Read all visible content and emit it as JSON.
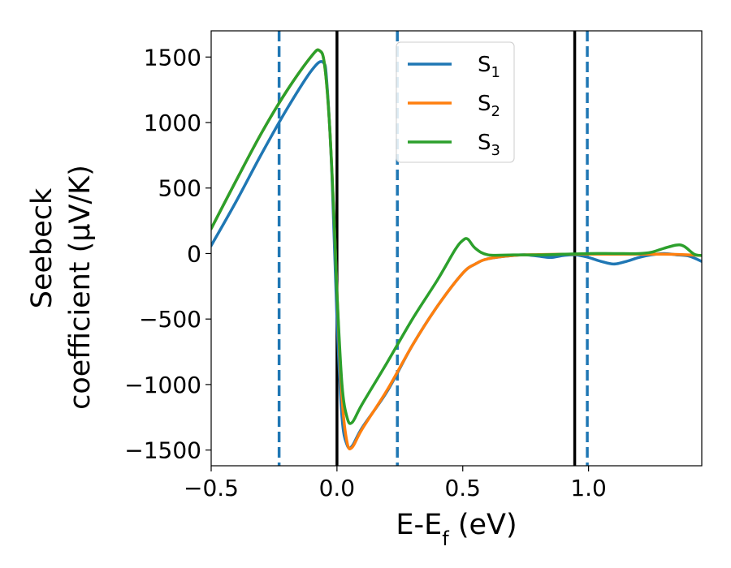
{
  "chart_data": {
    "type": "line",
    "xlabel": "E-E",
    "xlabel_sub": "f",
    "xlabel_unit": " (eV)",
    "ylabel_line1": "Seebeck",
    "ylabel_line2": "coefficient  (μV/K)",
    "xlim": [
      -0.5,
      1.45
    ],
    "ylim": [
      -1620,
      1700
    ],
    "xticks": [
      -0.5,
      0.0,
      0.5,
      1.0
    ],
    "xtick_labels": [
      "−0.5",
      "0.0",
      "0.5",
      "1.0"
    ],
    "yticks": [
      -1500,
      -1000,
      -500,
      0,
      500,
      1000,
      1500
    ],
    "ytick_labels": [
      "−1500",
      "−1000",
      "−500",
      "0",
      "500",
      "1000",
      "1500"
    ],
    "grid": false,
    "legend": {
      "placement": "top-center"
    },
    "vlines": [
      {
        "x": -0.23,
        "style": "dashed",
        "color": "#1f77b4"
      },
      {
        "x": 0.0,
        "style": "solid",
        "color": "#000000"
      },
      {
        "x": 0.24,
        "style": "dashed",
        "color": "#1f77b4"
      },
      {
        "x": 0.945,
        "style": "solid",
        "color": "#000000"
      },
      {
        "x": 0.995,
        "style": "dashed",
        "color": "#1f77b4"
      }
    ],
    "series": [
      {
        "name": "S",
        "sub": "1",
        "color": "#1f77b4",
        "x": [
          -0.5,
          -0.4,
          -0.3,
          -0.2,
          -0.1,
          -0.055,
          -0.04,
          -0.02,
          0.0,
          0.02,
          0.04,
          0.06,
          0.1,
          0.2,
          0.3,
          0.4,
          0.5,
          0.55,
          0.6,
          0.7,
          0.75,
          0.8,
          0.85,
          0.9,
          0.95,
          1.0,
          1.05,
          1.1,
          1.15,
          1.2,
          1.25,
          1.3,
          1.35,
          1.4,
          1.45
        ],
        "y": [
          60,
          400,
          760,
          1100,
          1400,
          1460,
          1300,
          600,
          -500,
          -1250,
          -1460,
          -1470,
          -1330,
          -1050,
          -700,
          -400,
          -150,
          -80,
          -40,
          -15,
          -10,
          -20,
          -30,
          -15,
          -10,
          -30,
          -60,
          -80,
          -60,
          -30,
          -10,
          0,
          -10,
          -20,
          -60
        ]
      },
      {
        "name": "S",
        "sub": "2",
        "color": "#ff7f0e",
        "x": [
          -0.5,
          -0.4,
          -0.3,
          -0.2,
          -0.1,
          -0.07,
          -0.05,
          -0.03,
          -0.01,
          0.0,
          0.02,
          0.04,
          0.06,
          0.1,
          0.2,
          0.3,
          0.4,
          0.5,
          0.55,
          0.6,
          0.7,
          0.8,
          0.9,
          1.0,
          1.1,
          1.2,
          1.3,
          1.4,
          1.45
        ],
        "y": [
          190,
          560,
          920,
          1240,
          1510,
          1550,
          1450,
          1000,
          200,
          -300,
          -1100,
          -1440,
          -1480,
          -1340,
          -1040,
          -700,
          -400,
          -150,
          -80,
          -40,
          -15,
          -8,
          -5,
          -5,
          -5,
          -5,
          -5,
          -10,
          -15
        ]
      },
      {
        "name": "S",
        "sub": "3",
        "color": "#2ca02c",
        "x": [
          -0.5,
          -0.4,
          -0.3,
          -0.2,
          -0.1,
          -0.07,
          -0.05,
          -0.03,
          -0.01,
          0.0,
          0.02,
          0.04,
          0.06,
          0.1,
          0.2,
          0.3,
          0.4,
          0.47,
          0.5,
          0.52,
          0.55,
          0.6,
          0.7,
          0.8,
          0.9,
          1.0,
          1.1,
          1.2,
          1.25,
          1.3,
          1.35,
          1.38,
          1.42,
          1.45
        ],
        "y": [
          190,
          560,
          920,
          1240,
          1510,
          1550,
          1450,
          1000,
          200,
          -300,
          -1000,
          -1250,
          -1290,
          -1150,
          -830,
          -500,
          -200,
          30,
          100,
          110,
          40,
          -10,
          -10,
          -10,
          -5,
          0,
          0,
          0,
          10,
          40,
          65,
          55,
          -5,
          -15
        ]
      }
    ]
  }
}
